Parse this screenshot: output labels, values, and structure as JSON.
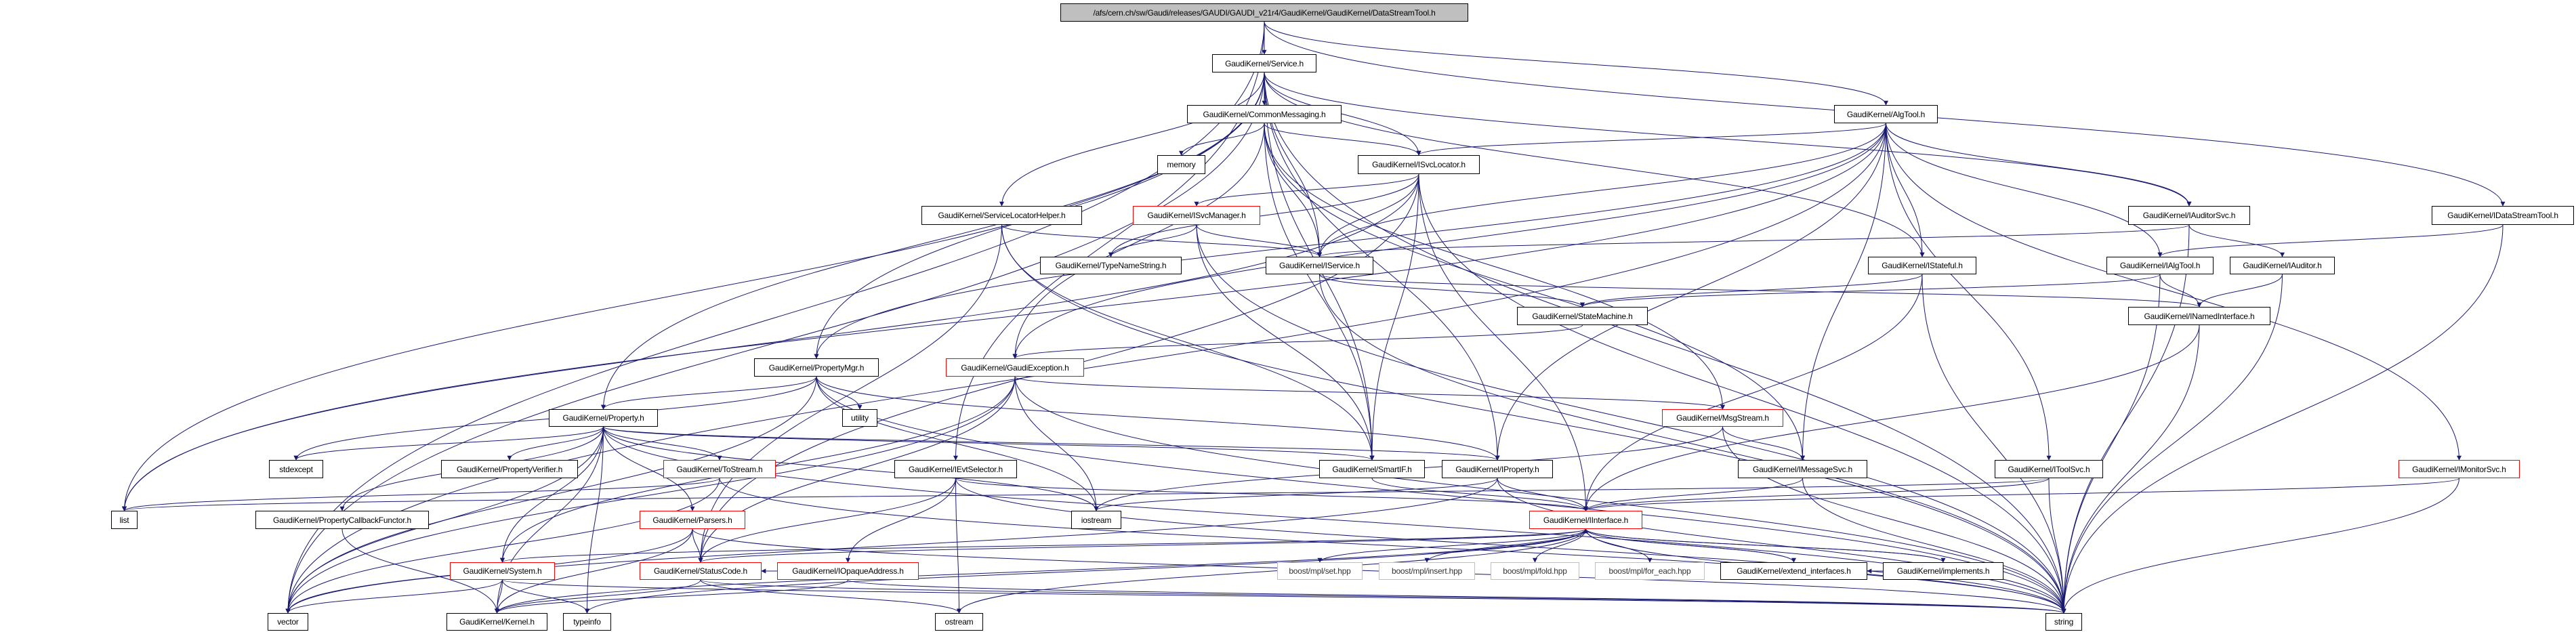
{
  "graph": {
    "edge_color": "#191970",
    "root_fill": "#bfbfbf",
    "incomplete_border": "#ff0000",
    "external_border": "#bfbfbf",
    "nodes": [
      {
        "id": "root",
        "label": "/afs/cern.ch/sw/Gaudi/releases/GAUDI/GAUDI_v21r4/GaudiKernel/GaudiKernel/DataStreamTool.h",
        "style": "root"
      },
      {
        "id": "Service",
        "label": "GaudiKernel/Service.h",
        "style": "normal"
      },
      {
        "id": "CommonMessaging",
        "label": "GaudiKernel/CommonMessaging.h",
        "style": "normal"
      },
      {
        "id": "memory",
        "label": "memory",
        "style": "normal"
      },
      {
        "id": "ISvcLocator",
        "label": "GaudiKernel/ISvcLocator.h",
        "style": "normal"
      },
      {
        "id": "ServiceLocatorHelper",
        "label": "GaudiKernel/ServiceLocatorHelper.h",
        "style": "normal"
      },
      {
        "id": "ISvcManager",
        "label": "GaudiKernel/ISvcManager.h",
        "style": "red"
      },
      {
        "id": "TypeNameString",
        "label": "GaudiKernel/TypeNameString.h",
        "style": "normal"
      },
      {
        "id": "IService",
        "label": "GaudiKernel/IService.h",
        "style": "normal"
      },
      {
        "id": "StateMachine",
        "label": "GaudiKernel/StateMachine.h",
        "style": "normal"
      },
      {
        "id": "AlgTool",
        "label": "GaudiKernel/AlgTool.h",
        "style": "normal"
      },
      {
        "id": "IAuditorSvc",
        "label": "GaudiKernel/IAuditorSvc.h",
        "style": "normal"
      },
      {
        "id": "IDataStreamTool",
        "label": "GaudiKernel/IDataStreamTool.h",
        "style": "normal"
      },
      {
        "id": "IStateful",
        "label": "GaudiKernel/IStateful.h",
        "style": "normal"
      },
      {
        "id": "IAlgTool",
        "label": "GaudiKernel/IAlgTool.h",
        "style": "normal"
      },
      {
        "id": "IAuditor",
        "label": "GaudiKernel/IAuditor.h",
        "style": "normal"
      },
      {
        "id": "INamedInterface",
        "label": "GaudiKernel/INamedInterface.h",
        "style": "normal"
      },
      {
        "id": "PropertyMgr",
        "label": "GaudiKernel/PropertyMgr.h",
        "style": "normal"
      },
      {
        "id": "GaudiException",
        "label": "GaudiKernel/GaudiException.h",
        "style": "red"
      },
      {
        "id": "utility",
        "label": "utility",
        "style": "normal"
      },
      {
        "id": "Property",
        "label": "GaudiKernel/Property.h",
        "style": "normal"
      },
      {
        "id": "MsgStream",
        "label": "GaudiKernel/MsgStream.h",
        "style": "red"
      },
      {
        "id": "stdexcept",
        "label": "stdexcept",
        "style": "normal"
      },
      {
        "id": "PropertyVerifier",
        "label": "GaudiKernel/PropertyVerifier.h",
        "style": "normal"
      },
      {
        "id": "ToStream",
        "label": "GaudiKernel/ToStream.h",
        "style": "red"
      },
      {
        "id": "IEvtSelector",
        "label": "GaudiKernel/IEvtSelector.h",
        "style": "normal"
      },
      {
        "id": "SmartIF",
        "label": "GaudiKernel/SmartIF.h",
        "style": "normal"
      },
      {
        "id": "IProperty",
        "label": "GaudiKernel/IProperty.h",
        "style": "normal"
      },
      {
        "id": "IMessageSvc",
        "label": "GaudiKernel/IMessageSvc.h",
        "style": "normal"
      },
      {
        "id": "IToolSvc",
        "label": "GaudiKernel/IToolSvc.h",
        "style": "normal"
      },
      {
        "id": "IMonitorSvc",
        "label": "GaudiKernel/IMonitorSvc.h",
        "style": "red"
      },
      {
        "id": "list",
        "label": "list",
        "style": "normal"
      },
      {
        "id": "PropertyCallbackFunctor",
        "label": "GaudiKernel/PropertyCallbackFunctor.h",
        "style": "normal"
      },
      {
        "id": "Parsers",
        "label": "GaudiKernel/Parsers.h",
        "style": "red"
      },
      {
        "id": "iostream",
        "label": "iostream",
        "style": "normal"
      },
      {
        "id": "IInterface",
        "label": "GaudiKernel/IInterface.h",
        "style": "red"
      },
      {
        "id": "System",
        "label": "GaudiKernel/System.h",
        "style": "red"
      },
      {
        "id": "StatusCode",
        "label": "GaudiKernel/StatusCode.h",
        "style": "red"
      },
      {
        "id": "IOpaqueAddress",
        "label": "GaudiKernel/IOpaqueAddress.h",
        "style": "red"
      },
      {
        "id": "boost_set",
        "label": "boost/mpl/set.hpp",
        "style": "gray"
      },
      {
        "id": "boost_insert",
        "label": "boost/mpl/insert.hpp",
        "style": "gray"
      },
      {
        "id": "boost_fold",
        "label": "boost/mpl/fold.hpp",
        "style": "gray"
      },
      {
        "id": "boost_for_each",
        "label": "boost/mpl/for_each.hpp",
        "style": "gray"
      },
      {
        "id": "extend_interfaces",
        "label": "GaudiKernel/extend_interfaces.h",
        "style": "normal"
      },
      {
        "id": "implements",
        "label": "GaudiKernel/implements.h",
        "style": "normal"
      },
      {
        "id": "vector",
        "label": "vector",
        "style": "normal"
      },
      {
        "id": "Kernel",
        "label": "GaudiKernel/Kernel.h",
        "style": "normal"
      },
      {
        "id": "typeinfo",
        "label": "typeinfo",
        "style": "normal"
      },
      {
        "id": "ostream",
        "label": "ostream",
        "style": "normal"
      },
      {
        "id": "string",
        "label": "string",
        "style": "normal"
      }
    ],
    "edges": [
      [
        "root",
        "Service"
      ],
      [
        "root",
        "AlgTool"
      ],
      [
        "root",
        "IDataStreamTool"
      ],
      [
        "root",
        "vector"
      ],
      [
        "root",
        "IEvtSelector"
      ],
      [
        "Service",
        "CommonMessaging"
      ],
      [
        "Service",
        "ISvcLocator"
      ],
      [
        "Service",
        "IService"
      ],
      [
        "Service",
        "IProperty"
      ],
      [
        "Service",
        "PropertyMgr"
      ],
      [
        "Service",
        "Property"
      ],
      [
        "Service",
        "IAuditorSvc"
      ],
      [
        "Service",
        "IStateful"
      ],
      [
        "Service",
        "SmartIF"
      ],
      [
        "Service",
        "ServiceLocatorHelper"
      ],
      [
        "Service",
        "vector"
      ],
      [
        "Service",
        "list"
      ],
      [
        "Service",
        "string"
      ],
      [
        "CommonMessaging",
        "memory"
      ],
      [
        "CommonMessaging",
        "ISvcLocator"
      ],
      [
        "CommonMessaging",
        "IService"
      ],
      [
        "CommonMessaging",
        "IMessageSvc"
      ],
      [
        "CommonMessaging",
        "MsgStream"
      ],
      [
        "CommonMessaging",
        "SmartIF"
      ],
      [
        "CommonMessaging",
        "GaudiException"
      ],
      [
        "ISvcLocator",
        "ISvcManager"
      ],
      [
        "ISvcLocator",
        "IService"
      ],
      [
        "ISvcLocator",
        "IInterface"
      ],
      [
        "ISvcLocator",
        "SmartIF"
      ],
      [
        "ISvcLocator",
        "TypeNameString"
      ],
      [
        "ISvcLocator",
        "string"
      ],
      [
        "ISvcLocator",
        "list"
      ],
      [
        "ISvcLocator",
        "StatusCode"
      ],
      [
        "ISvcManager",
        "TypeNameString"
      ],
      [
        "ISvcManager",
        "IService"
      ],
      [
        "ISvcManager",
        "SmartIF"
      ],
      [
        "ISvcManager",
        "string"
      ],
      [
        "ServiceLocatorHelper",
        "IService"
      ],
      [
        "ServiceLocatorHelper",
        "SmartIF"
      ],
      [
        "ServiceLocatorHelper",
        "StatusCode"
      ],
      [
        "ServiceLocatorHelper",
        "string"
      ],
      [
        "IService",
        "INamedInterface"
      ],
      [
        "IService",
        "StateMachine"
      ],
      [
        "IService",
        "string"
      ],
      [
        "AlgTool",
        "IAlgTool"
      ],
      [
        "AlgTool",
        "IProperty"
      ],
      [
        "AlgTool",
        "IService"
      ],
      [
        "AlgTool",
        "ISvcLocator"
      ],
      [
        "AlgTool",
        "IMessageSvc"
      ],
      [
        "AlgTool",
        "IToolSvc"
      ],
      [
        "AlgTool",
        "PropertyMgr"
      ],
      [
        "AlgTool",
        "IAuditorSvc"
      ],
      [
        "AlgTool",
        "IMonitorSvc"
      ],
      [
        "AlgTool",
        "IStateful"
      ],
      [
        "AlgTool",
        "GaudiException"
      ],
      [
        "AlgTool",
        "vector"
      ],
      [
        "AlgTool",
        "list"
      ],
      [
        "IAuditorSvc",
        "IService"
      ],
      [
        "IAuditorSvc",
        "IAuditor"
      ],
      [
        "IAuditorSvc",
        "string"
      ],
      [
        "IAuditor",
        "INamedInterface"
      ],
      [
        "IAuditor",
        "string"
      ],
      [
        "IAlgTool",
        "INamedInterface"
      ],
      [
        "IAlgTool",
        "StateMachine"
      ],
      [
        "IAlgTool",
        "string"
      ],
      [
        "IDataStreamTool",
        "IAlgTool"
      ],
      [
        "IDataStreamTool",
        "string"
      ],
      [
        "IStateful",
        "StateMachine"
      ],
      [
        "IStateful",
        "IInterface"
      ],
      [
        "IStateful",
        "string"
      ],
      [
        "StateMachine",
        "GaudiException"
      ],
      [
        "INamedInterface",
        "IInterface"
      ],
      [
        "INamedInterface",
        "string"
      ],
      [
        "PropertyMgr",
        "Property"
      ],
      [
        "PropertyMgr",
        "IProperty"
      ],
      [
        "PropertyMgr",
        "utility"
      ],
      [
        "PropertyMgr",
        "vector"
      ],
      [
        "PropertyMgr",
        "stdexcept"
      ],
      [
        "PropertyMgr",
        "string"
      ],
      [
        "PropertyMgr",
        "iostream"
      ],
      [
        "GaudiException",
        "MsgStream"
      ],
      [
        "GaudiException",
        "StatusCode"
      ],
      [
        "GaudiException",
        "System"
      ],
      [
        "GaudiException",
        "string"
      ],
      [
        "GaudiException",
        "iostream"
      ],
      [
        "GaudiException",
        "vector"
      ],
      [
        "Property",
        "stdexcept"
      ],
      [
        "Property",
        "PropertyVerifier"
      ],
      [
        "Property",
        "ToStream"
      ],
      [
        "Property",
        "Parsers"
      ],
      [
        "Property",
        "PropertyCallbackFunctor"
      ],
      [
        "Property",
        "IProperty"
      ],
      [
        "Property",
        "SmartIF"
      ],
      [
        "Property",
        "System"
      ],
      [
        "Property",
        "Kernel"
      ],
      [
        "Property",
        "typeinfo"
      ],
      [
        "Property",
        "string"
      ],
      [
        "Property",
        "vector"
      ],
      [
        "Property",
        "iostream"
      ],
      [
        "ToStream",
        "list"
      ],
      [
        "ToStream",
        "vector"
      ],
      [
        "ToStream",
        "string"
      ],
      [
        "Parsers",
        "StatusCode"
      ],
      [
        "Parsers",
        "vector"
      ],
      [
        "Parsers",
        "string"
      ],
      [
        "Parsers",
        "Kernel"
      ],
      [
        "PropertyCallbackFunctor",
        "Kernel"
      ],
      [
        "MsgStream",
        "IMessageSvc"
      ],
      [
        "MsgStream",
        "iostream"
      ],
      [
        "MsgStream",
        "string"
      ],
      [
        "IEvtSelector",
        "IInterface"
      ],
      [
        "IEvtSelector",
        "IOpaqueAddress"
      ],
      [
        "IEvtSelector",
        "StatusCode"
      ],
      [
        "IEvtSelector",
        "string"
      ],
      [
        "IEvtSelector",
        "ostream"
      ],
      [
        "SmartIF",
        "IInterface"
      ],
      [
        "IProperty",
        "IInterface"
      ],
      [
        "IProperty",
        "iostream"
      ],
      [
        "IProperty",
        "string"
      ],
      [
        "IProperty",
        "vector"
      ],
      [
        "IMessageSvc",
        "IInterface"
      ],
      [
        "IMessageSvc",
        "string"
      ],
      [
        "IToolSvc",
        "IInterface"
      ],
      [
        "IToolSvc",
        "string"
      ],
      [
        "IToolSvc",
        "list"
      ],
      [
        "IMonitorSvc",
        "IInterface"
      ],
      [
        "IMonitorSvc",
        "string"
      ],
      [
        "IInterface",
        "boost_set"
      ],
      [
        "IInterface",
        "boost_insert"
      ],
      [
        "IInterface",
        "boost_fold"
      ],
      [
        "IInterface",
        "boost_for_each"
      ],
      [
        "IInterface",
        "extend_interfaces"
      ],
      [
        "IInterface",
        "implements"
      ],
      [
        "IInterface",
        "System"
      ],
      [
        "IInterface",
        "StatusCode"
      ],
      [
        "IInterface",
        "Kernel"
      ],
      [
        "IInterface",
        "ostream"
      ],
      [
        "IInterface",
        "typeinfo"
      ],
      [
        "IInterface",
        "string"
      ],
      [
        "extend_interfaces",
        "IInterface"
      ],
      [
        "implements",
        "IInterface"
      ],
      [
        "implements",
        "extend_interfaces"
      ],
      [
        "System",
        "Kernel"
      ],
      [
        "System",
        "vector"
      ],
      [
        "System",
        "typeinfo"
      ],
      [
        "System",
        "string"
      ],
      [
        "StatusCode",
        "Kernel"
      ],
      [
        "StatusCode",
        "ostream"
      ],
      [
        "StatusCode",
        "string"
      ],
      [
        "IOpaqueAddress",
        "Kernel"
      ],
      [
        "IOpaqueAddress",
        "StatusCode"
      ],
      [
        "IOpaqueAddress",
        "string"
      ]
    ]
  }
}
